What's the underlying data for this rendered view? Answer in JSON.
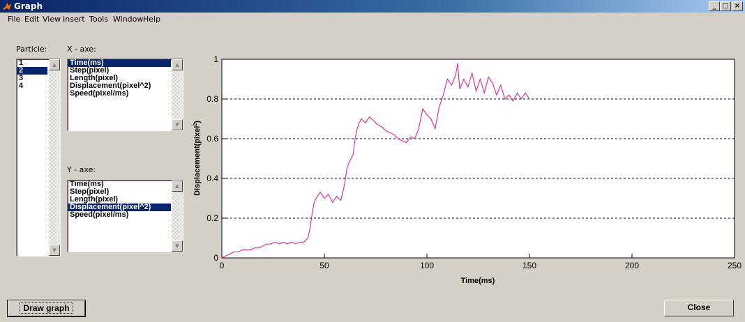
{
  "window": {
    "title": "Graph",
    "controls": [
      "_",
      "□",
      "×"
    ]
  },
  "menu": [
    "File",
    "Edit",
    "View",
    "Insert",
    "Tools",
    "Window",
    "Help"
  ],
  "labels": {
    "particle": "Particle:",
    "x_axe": "X - axe:",
    "y_axe": "Y - axe:"
  },
  "particle_list": {
    "items": [
      "1",
      "2",
      "3",
      "4"
    ],
    "selected": "2"
  },
  "x_axe_list": {
    "items": [
      "Time(ms)",
      "Step(pixel)",
      "Length(pixel)",
      "Displacement(pixel^2)",
      "Speed(pixel/ms)"
    ],
    "selected": "Time(ms)"
  },
  "y_axe_list": {
    "items": [
      "Time(ms)",
      "Step(pixel)",
      "Length(pixel)",
      "Displacement(pixel^2)",
      "Speed(pixel/ms)"
    ],
    "selected": "Displacement(pixel^2)"
  },
  "buttons": {
    "draw_graph": "Draw graph",
    "close": "Close"
  },
  "chart_data": {
    "type": "line",
    "xlabel": "Time(ms)",
    "ylabel": "Displacement(pixel",
    "ylabel_sup": "2",
    "ylabel_end": ")",
    "xlim": [
      0,
      250
    ],
    "ylim": [
      0,
      1
    ],
    "xticks": [
      0,
      50,
      100,
      150,
      200,
      250
    ],
    "yticks": [
      0,
      0.2,
      0.4,
      0.6,
      0.8,
      1
    ],
    "grid": "y dashed",
    "line_color": "#e0108a",
    "series": [
      {
        "x": [
          0,
          2,
          4,
          6,
          8,
          10,
          12,
          14,
          16,
          18,
          20,
          22,
          24,
          26,
          28,
          30,
          32,
          34,
          36,
          38,
          40,
          42,
          43,
          44,
          45,
          46,
          48,
          50,
          52,
          54,
          56,
          58,
          59,
          60,
          61,
          62,
          64,
          65,
          66,
          67,
          68,
          70,
          72,
          74,
          76,
          78,
          80,
          82,
          84,
          86,
          88,
          90,
          92,
          94,
          96,
          98,
          100,
          102,
          104,
          106,
          108,
          110,
          112,
          114,
          115,
          116,
          118,
          120,
          122,
          124,
          126,
          128,
          130,
          132,
          134,
          136,
          138,
          140,
          142,
          144,
          146,
          148,
          150
        ],
        "y": [
          0,
          0.01,
          0.02,
          0.03,
          0.03,
          0.04,
          0.04,
          0.04,
          0.05,
          0.05,
          0.06,
          0.07,
          0.07,
          0.08,
          0.07,
          0.08,
          0.07,
          0.08,
          0.07,
          0.08,
          0.08,
          0.1,
          0.15,
          0.22,
          0.28,
          0.3,
          0.33,
          0.3,
          0.32,
          0.28,
          0.31,
          0.29,
          0.33,
          0.38,
          0.45,
          0.48,
          0.52,
          0.6,
          0.65,
          0.68,
          0.7,
          0.68,
          0.71,
          0.69,
          0.67,
          0.66,
          0.64,
          0.63,
          0.62,
          0.6,
          0.59,
          0.58,
          0.61,
          0.6,
          0.65,
          0.75,
          0.72,
          0.7,
          0.65,
          0.76,
          0.82,
          0.9,
          0.87,
          0.92,
          0.98,
          0.85,
          0.9,
          0.86,
          0.93,
          0.84,
          0.9,
          0.83,
          0.91,
          0.88,
          0.82,
          0.87,
          0.8,
          0.82,
          0.79,
          0.83,
          0.8,
          0.83,
          0.8
        ]
      }
    ]
  }
}
